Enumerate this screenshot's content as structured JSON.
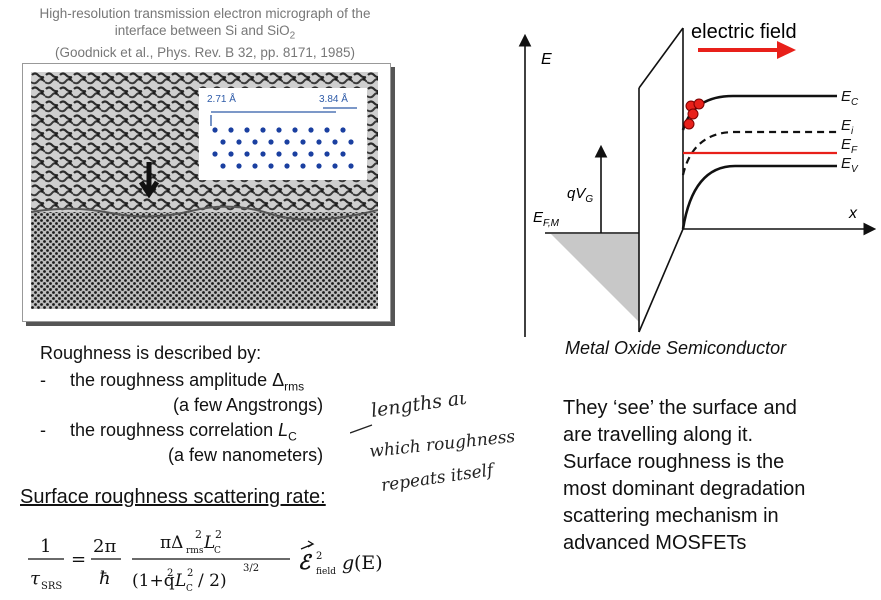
{
  "caption": {
    "line1": "High-resolution transmission electron micrograph of the",
    "line2": "interface between Si and SiO",
    "line2_sub": "2",
    "line3": "(Goodnick et al., Phys. Rev. B 32, pp. 8171, 1985)"
  },
  "micrograph": {
    "inset_left_label": "2.71 Å",
    "inset_right_label": "3.84 Å"
  },
  "roughness": {
    "intro": "Roughness is described by:",
    "item1_dash": "-",
    "item1_text": "the roughness amplitude Δ",
    "item1_sub": "rms",
    "item1_note": "(a few Angstrongs)",
    "item2_dash": "-",
    "item2_text": "the roughness correlation ",
    "item2_sym": "L",
    "item2_sub": "C",
    "item2_note": "(a few nanometers)"
  },
  "srs_title": "Surface roughness scattering rate:",
  "equation": {
    "lhs_num": "1",
    "lhs_den": "τ",
    "lhs_den_sub": "SRS",
    "eq_sign": "=",
    "c_num": "2π",
    "c_den": "ħ",
    "frac_num": "πΔ",
    "frac_num_sub": "rms",
    "frac_num_sup": "2",
    "frac_num_L": "L",
    "frac_num_L_sub": "C",
    "frac_num_L_sup": "2",
    "frac_den": "(1+q",
    "frac_den_sup1": "2",
    "frac_den_L": "L",
    "frac_den_L_sub": "C",
    "frac_den_sup2": "2",
    "frac_den_end": "/ 2)",
    "frac_den_exp": "3/2",
    "field": "ℰ",
    "field_sup": "2",
    "field_sub": "field",
    "g": "g",
    "g_arg": "(E)"
  },
  "band": {
    "field_label": "electric field",
    "axis_E": "E",
    "axis_x": "x",
    "label_Ec": "E",
    "label_Ec_sub": "C",
    "label_Ei": "E",
    "label_Ei_sub": "i",
    "label_Ef": "E",
    "label_Ef_sub": "F",
    "label_Ev": "E",
    "label_Ev_sub": "V",
    "label_qvg": "qV",
    "label_qvg_sub": "G",
    "label_efm": "E",
    "label_efm_sub": "F,M",
    "arrow_color": "#e8201a",
    "ef_color": "#e8201a",
    "electron_color": "#e8201a"
  },
  "band_caption": "Metal  Oxide  Semiconductor",
  "paragraph": [
    "They ‘see’ the surface and",
    "are travelling along it.",
    "Surface roughness is the",
    "most dominant degradation",
    "scattering mechanism in",
    "advanced MOSFETs"
  ],
  "handwriting": {
    "line1": "lengths at",
    "line2": "which roughness",
    "line3": "repeats itself"
  }
}
